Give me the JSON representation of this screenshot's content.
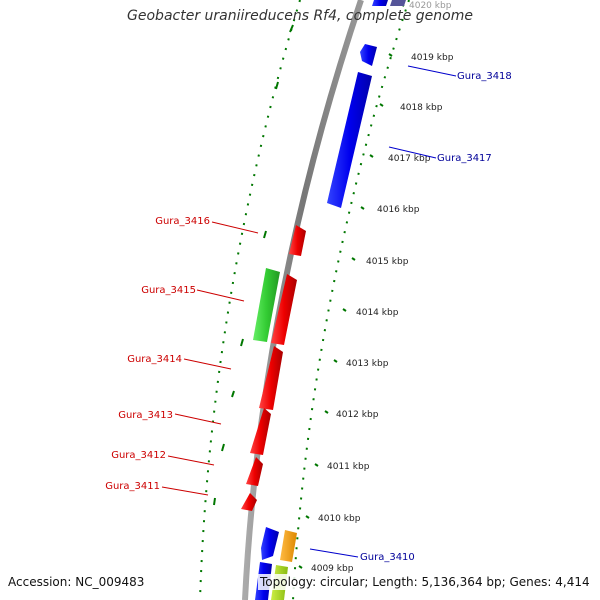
{
  "title": "Geobacter uraniireducens Rf4, complete genome",
  "accession": "Accession: NC_009483",
  "topology": "Topology: circular; Length: 5,136,364 bp; Genes: 4,414",
  "colors": {
    "backbone": "#888888",
    "forward": "#0000ee",
    "reverse": "#ee0000",
    "green": "#33cc33",
    "orange": "#ff9900",
    "lime": "#aadd22",
    "tick": "#007700",
    "label_forward": "#000099",
    "label_reverse": "#cc0000"
  },
  "kbp_ticks": [
    "4009 kbp",
    "4010 kbp",
    "4011 kbp",
    "4012 kbp",
    "4013 kbp",
    "4014 kbp",
    "4015 kbp",
    "4016 kbp",
    "4017 kbp",
    "4018 kbp",
    "4019 kbp",
    "4020 kbp"
  ],
  "right_labels": [
    {
      "name": "Gura_3418"
    },
    {
      "name": "Gura_3417"
    },
    {
      "name": "Gura_3410"
    }
  ],
  "left_labels": [
    {
      "name": "Gura_3416"
    },
    {
      "name": "Gura_3415"
    },
    {
      "name": "Gura_3414"
    },
    {
      "name": "Gura_3413"
    },
    {
      "name": "Gura_3412"
    },
    {
      "name": "Gura_3411"
    }
  ]
}
